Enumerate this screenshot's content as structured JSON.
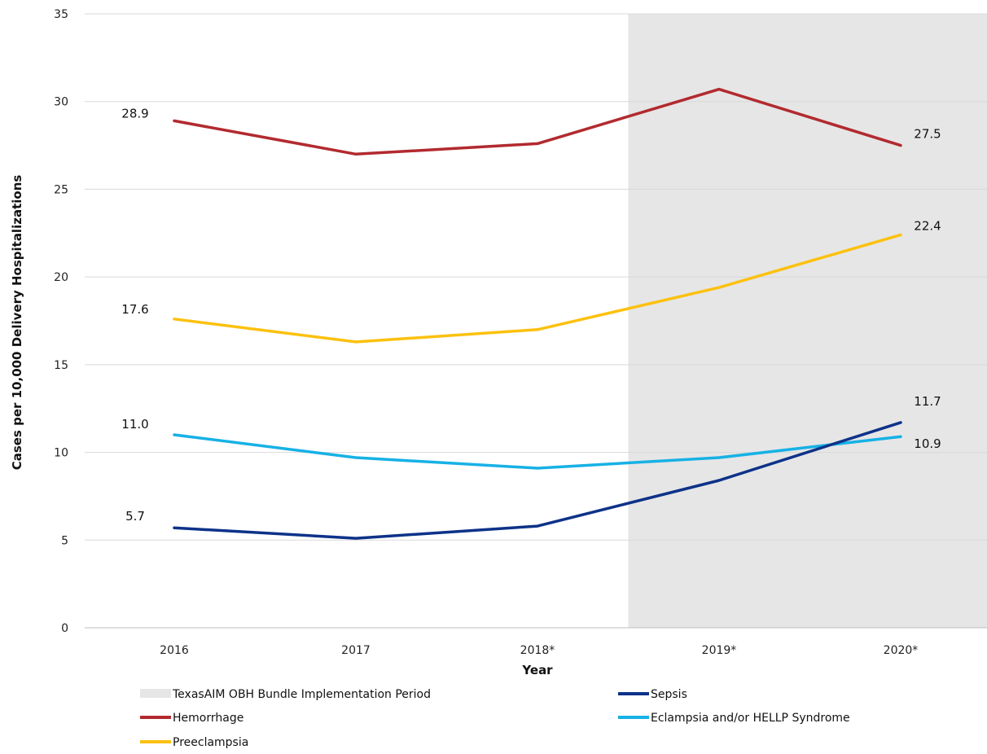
{
  "chart_data": {
    "type": "line",
    "title": "",
    "xlabel": "Year",
    "ylabel": "Cases per 10,000 Delivery Hospitalizations",
    "categories": [
      "2016",
      "2017",
      "2018*",
      "2019*",
      "2020*"
    ],
    "ylim": [
      0,
      35
    ],
    "yticks": [
      0,
      5,
      10,
      15,
      20,
      25,
      30,
      35
    ],
    "grid": "horizontal",
    "shaded_region": {
      "label": "TexasAIM OBH Bundle Implementation Period",
      "from_category_index": 2.5,
      "to": "end",
      "color": "#e6e6e6"
    },
    "series": [
      {
        "name": "Hemorrhage",
        "color": "#b22a2f",
        "values": [
          28.9,
          27.0,
          27.6,
          30.7,
          27.5
        ],
        "labels": [
          {
            "index": 0,
            "text": "28.9"
          },
          {
            "index": 4,
            "text": "27.5"
          }
        ]
      },
      {
        "name": "Preeclampsia",
        "color": "#fcc10f",
        "values": [
          17.6,
          16.3,
          17.0,
          19.4,
          22.4
        ],
        "labels": [
          {
            "index": 0,
            "text": "17.6"
          },
          {
            "index": 4,
            "text": "22.4"
          }
        ]
      },
      {
        "name": "Eclampsia and/or HELLP Syndrome",
        "color": "#17b1e5",
        "values": [
          11.0,
          9.7,
          9.1,
          9.7,
          10.9
        ],
        "labels": [
          {
            "index": 0,
            "text": "11.0"
          },
          {
            "index": 4,
            "text": "10.9"
          }
        ]
      },
      {
        "name": "Sepsis",
        "color": "#0d3289",
        "values": [
          5.7,
          5.1,
          5.8,
          8.4,
          11.7
        ],
        "labels": [
          {
            "index": 0,
            "text": "5.7"
          },
          {
            "index": 4,
            "text": "11.7"
          }
        ]
      }
    ],
    "legend": {
      "placement": "bottom",
      "entries": [
        {
          "label": "TexasAIM OBH Bundle Implementation Period",
          "kind": "patch",
          "color": "#e6e6e6"
        },
        {
          "label": "Sepsis",
          "kind": "line",
          "color": "#0d3289"
        },
        {
          "label": "Hemorrhage",
          "kind": "line",
          "color": "#b22a2f"
        },
        {
          "label": "Eclampsia and/or HELLP Syndrome",
          "kind": "line",
          "color": "#17b1e5"
        },
        {
          "label": "Preeclampsia",
          "kind": "line",
          "color": "#fcc10f"
        }
      ]
    }
  }
}
